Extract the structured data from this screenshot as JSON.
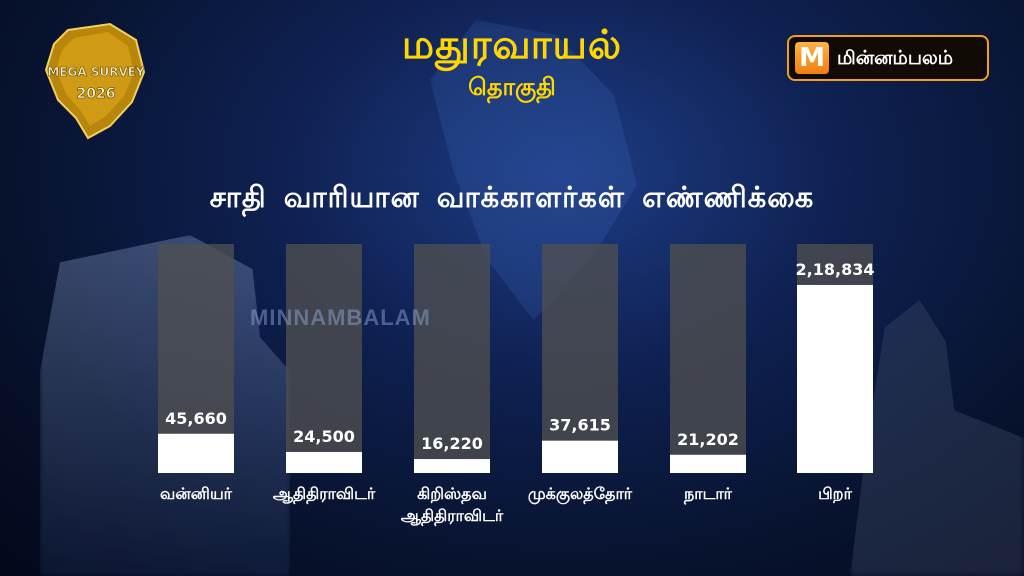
{
  "header": {
    "title": "மதுரவாயல்",
    "subtitle": "தொகுதி"
  },
  "survey_badge": {
    "line1": "MEGA SURVEY",
    "line2": "2026",
    "color": "#d4a017"
  },
  "brand": {
    "mark": "M",
    "name": "மின்னம்பலம்",
    "accent_color": "#f39c12"
  },
  "watermark": "MINNAMBALAM",
  "colors": {
    "title": "#ffd700",
    "bar_fill": "#ffffff",
    "bar_track": "rgba(80,80,80,0.78)",
    "value_text": "#ffffff",
    "label_text": "#ffffff"
  },
  "chart_data": {
    "type": "bar",
    "title": "சாதி வாரியான வாக்காளர்கள் எண்ணிக்கை",
    "categories": [
      [
        "வன்னியர்"
      ],
      [
        "ஆதிதிராவிடர்"
      ],
      [
        "கிறிஸ்தவ",
        "ஆதிதிராவிடர்"
      ],
      [
        "முக்குலத்தோர்"
      ],
      [
        "நாடார்"
      ],
      [
        "பிறர்"
      ]
    ],
    "values": [
      45660,
      24500,
      16220,
      37615,
      21202,
      218834
    ],
    "value_labels": [
      "45,660",
      "24,500",
      "16,220",
      "37,615",
      "21,202",
      "2,18,834"
    ],
    "ylim": [
      0,
      270000
    ]
  }
}
